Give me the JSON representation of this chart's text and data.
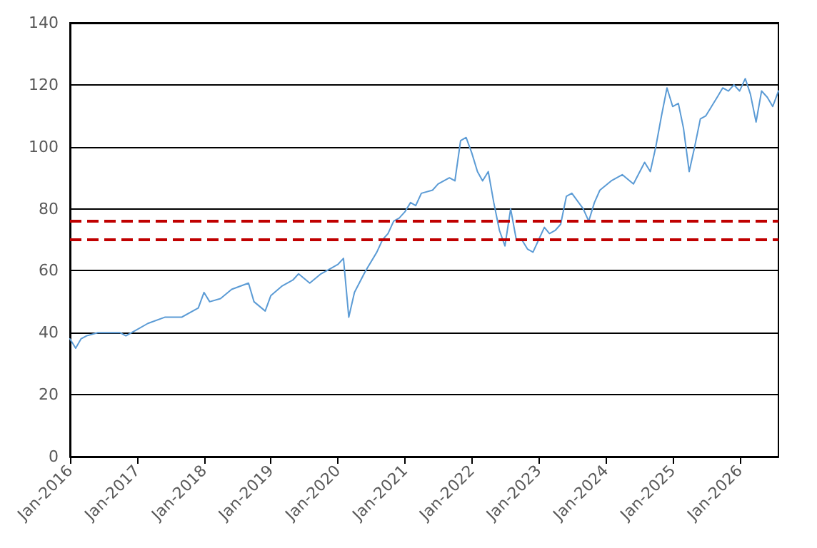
{
  "chart_data": {
    "type": "line",
    "x": [
      "2016-01",
      "2016-02",
      "2016-03",
      "2016-04",
      "2016-06",
      "2016-08",
      "2016-10",
      "2016-11",
      "2017-01",
      "2017-03",
      "2017-06",
      "2017-09",
      "2017-12",
      "2018-01",
      "2018-02",
      "2018-04",
      "2018-06",
      "2018-09",
      "2018-10",
      "2018-12",
      "2019-01",
      "2019-03",
      "2019-05",
      "2019-06",
      "2019-08",
      "2019-10",
      "2019-12",
      "2020-01",
      "2020-02",
      "2020-03",
      "2020-04",
      "2020-06",
      "2020-08",
      "2020-09",
      "2020-10",
      "2020-11",
      "2020-12",
      "2021-01",
      "2021-02",
      "2021-03",
      "2021-04",
      "2021-06",
      "2021-07",
      "2021-09",
      "2021-10",
      "2021-11",
      "2021-12",
      "2022-01",
      "2022-02",
      "2022-03",
      "2022-04",
      "2022-05",
      "2022-06",
      "2022-07",
      "2022-08",
      "2022-09",
      "2022-10",
      "2022-11",
      "2022-12",
      "2023-01",
      "2023-02",
      "2023-03",
      "2023-04",
      "2023-05",
      "2023-06",
      "2023-07",
      "2023-09",
      "2023-10",
      "2023-11",
      "2023-12",
      "2024-02",
      "2024-04",
      "2024-06",
      "2024-08",
      "2024-09",
      "2024-10",
      "2024-11",
      "2024-12",
      "2025-01",
      "2025-02",
      "2025-03",
      "2025-04",
      "2025-05",
      "2025-06",
      "2025-07",
      "2025-08",
      "2025-09",
      "2025-10",
      "2025-11",
      "2025-12",
      "2026-01",
      "2026-02",
      "2026-03",
      "2026-04",
      "2026-05",
      "2026-06",
      "2026-07",
      "2026-08"
    ],
    "series": [
      {
        "color": "#5b9bd5",
        "values": [
          38,
          35,
          38,
          39,
          40,
          40,
          40,
          39,
          41,
          43,
          45,
          45,
          48,
          53,
          50,
          51,
          54,
          56,
          50,
          47,
          52,
          55,
          57,
          59,
          56,
          59,
          61,
          62,
          64,
          45,
          53,
          60,
          66,
          70,
          72,
          76,
          77,
          79,
          82,
          81,
          85,
          86,
          88,
          90,
          89,
          102,
          103,
          98,
          92,
          89,
          92,
          82,
          73,
          68,
          80,
          70,
          70,
          67,
          66,
          70,
          74,
          72,
          73,
          75,
          84,
          85,
          80,
          76,
          82,
          86,
          89,
          91,
          88,
          95,
          92,
          100,
          110,
          119,
          113,
          114,
          106,
          92,
          100,
          109,
          110,
          113,
          116,
          119,
          118,
          120,
          118,
          122,
          117,
          108,
          118,
          116,
          113,
          118
        ]
      }
    ],
    "xlim": [
      "2016-01",
      "2026-08"
    ],
    "xticks": [
      {
        "value": "2016-01",
        "label": "Jan-2016"
      },
      {
        "value": "2017-01",
        "label": "Jan-2017"
      },
      {
        "value": "2018-01",
        "label": "Jan-2018"
      },
      {
        "value": "2019-01",
        "label": "Jan-2019"
      },
      {
        "value": "2020-01",
        "label": "Jan-2020"
      },
      {
        "value": "2021-01",
        "label": "Jan-2021"
      },
      {
        "value": "2022-01",
        "label": "Jan-2022"
      },
      {
        "value": "2023-01",
        "label": "Jan-2023"
      },
      {
        "value": "2024-01",
        "label": "Jan-2024"
      },
      {
        "value": "2025-01",
        "label": "Jan-2025"
      },
      {
        "value": "2026-01",
        "label": "Jan-2026"
      }
    ],
    "ylim": [
      0,
      140
    ],
    "yticks": [
      0,
      20,
      40,
      60,
      80,
      100,
      120,
      140
    ],
    "ref_lines": [
      {
        "axis": "y",
        "value": 76,
        "color": "#c00000",
        "line_style": "dashed"
      },
      {
        "axis": "y",
        "value": 70,
        "color": "#c00000",
        "line_style": "dashed"
      }
    ],
    "grid": "y",
    "marker": "none",
    "line_style": "solid"
  }
}
